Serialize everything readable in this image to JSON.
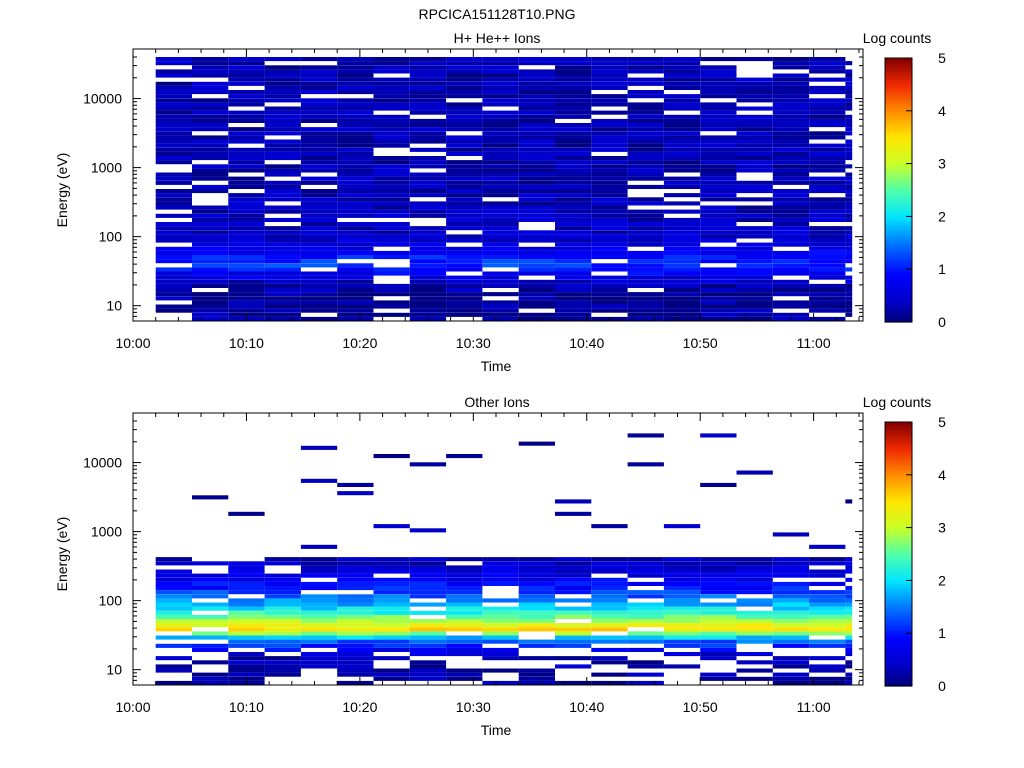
{
  "figure": {
    "title": "RPCICA151128T10.PNG"
  },
  "chart_data": [
    {
      "type": "heatmap",
      "title": "H+ He++ Ions",
      "xlabel": "Time",
      "ylabel": "Energy (eV)",
      "x_ticks": [
        "10:00",
        "10:10",
        "10:20",
        "10:30",
        "10:40",
        "10:50",
        "11:00"
      ],
      "x_range_minutes": [
        0,
        64
      ],
      "y_scale": "log",
      "ylim": [
        6,
        40000
      ],
      "y_ticks": [
        10,
        100,
        1000,
        10000
      ],
      "y_tick_labels": [
        "10",
        "100",
        "1000",
        "10000"
      ],
      "colorbar": {
        "label": "Log counts",
        "range": [
          0,
          5
        ],
        "ticks": [
          "0",
          "1",
          "2",
          "3",
          "4",
          "5"
        ]
      },
      "time_bins_minutes": [
        2.0,
        5.2,
        8.4,
        11.6,
        14.8,
        18.0,
        21.2,
        24.4,
        27.6,
        30.8,
        34.0,
        37.2,
        40.4,
        43.6,
        46.8,
        50.0,
        53.2,
        56.4,
        59.6,
        62.8
      ],
      "profile": [
        {
          "energy": 8,
          "value": 0.2
        },
        {
          "energy": 12,
          "value": 0.15
        },
        {
          "energy": 20,
          "value": 0.25
        },
        {
          "energy": 30,
          "value": 0.8
        },
        {
          "energy": 40,
          "value": 1.2
        },
        {
          "energy": 55,
          "value": 0.9
        },
        {
          "energy": 80,
          "value": 0.5
        },
        {
          "energy": 150,
          "value": 0.35
        },
        {
          "energy": 500,
          "value": 0.3
        },
        {
          "energy": 3000,
          "value": 0.3
        },
        {
          "energy": 40000,
          "value": 0.28
        }
      ]
    },
    {
      "type": "heatmap",
      "title": "Other Ions",
      "xlabel": "Time",
      "ylabel": "Energy (eV)",
      "x_ticks": [
        "10:00",
        "10:10",
        "10:20",
        "10:30",
        "10:40",
        "10:50",
        "11:00"
      ],
      "x_range_minutes": [
        0,
        64
      ],
      "y_scale": "log",
      "ylim": [
        6,
        40000
      ],
      "y_ticks": [
        10,
        100,
        1000,
        10000
      ],
      "y_tick_labels": [
        "10",
        "100",
        "1000",
        "10000"
      ],
      "colorbar": {
        "label": "Log counts",
        "range": [
          0,
          5
        ],
        "ticks": [
          "0",
          "1",
          "2",
          "3",
          "4",
          "5"
        ]
      },
      "time_bins_minutes": [
        2.0,
        5.2,
        8.4,
        11.6,
        14.8,
        18.0,
        21.2,
        24.4,
        27.6,
        30.8,
        34.0,
        37.2,
        40.4,
        43.6,
        46.8,
        50.0,
        53.2,
        56.4,
        59.6,
        62.8
      ],
      "profile": [
        {
          "energy": 8,
          "value": 0.2
        },
        {
          "energy": 15,
          "value": 0.3
        },
        {
          "energy": 25,
          "value": 1.3
        },
        {
          "energy": 30,
          "value": 2.0
        },
        {
          "energy": 38,
          "value": 3.6
        },
        {
          "energy": 45,
          "value": 3.2
        },
        {
          "energy": 60,
          "value": 2.5
        },
        {
          "energy": 90,
          "value": 1.7
        },
        {
          "energy": 150,
          "value": 1.0
        },
        {
          "energy": 250,
          "value": 0.6
        },
        {
          "energy": 400,
          "value": 0.3
        },
        {
          "energy": 40000,
          "value": 0.2
        }
      ]
    }
  ]
}
